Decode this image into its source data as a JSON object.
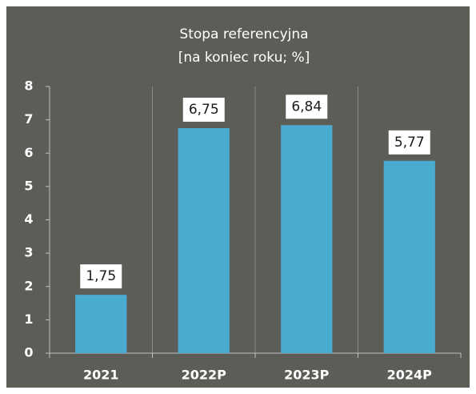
{
  "chart_data": {
    "type": "bar",
    "title": "Stopa referencyjna",
    "subtitle": "[na koniec roku; %]",
    "categories": [
      "2021",
      "2022P",
      "2023P",
      "2024P"
    ],
    "values": [
      1.75,
      6.75,
      6.84,
      5.77
    ],
    "value_labels": [
      "1,75",
      "6,75",
      "6,84",
      "5,77"
    ],
    "color": "#4aabd0",
    "ylim": [
      0,
      8
    ],
    "yticks": [
      0,
      1,
      2,
      3,
      4,
      5,
      6,
      7,
      8
    ],
    "grid": false
  }
}
